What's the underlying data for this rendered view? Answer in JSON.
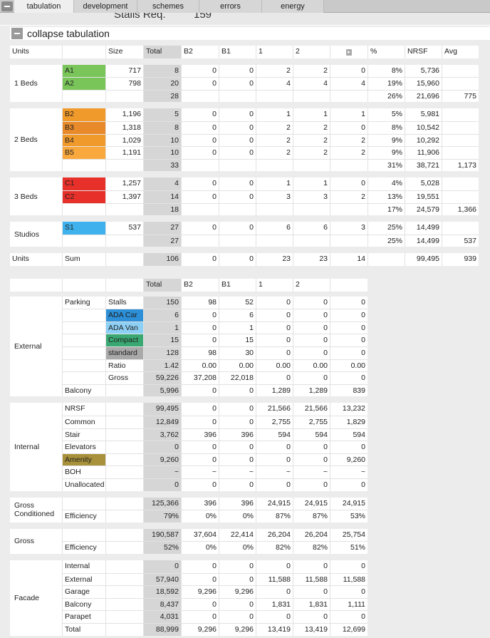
{
  "tabs": [
    "tabulation",
    "development",
    "schemes",
    "errors",
    "energy"
  ],
  "stalls_peek": {
    "label": "Stalls Req.",
    "value": "159"
  },
  "section_title": "collapse tabulation",
  "unit_header": [
    "Units",
    "",
    "Size",
    "Total",
    "B2",
    "B1",
    "1",
    "2",
    "",
    "%",
    "NRSF",
    "Avg"
  ],
  "unit_groups": [
    {
      "label": "1 Beds",
      "rows": [
        {
          "type": "A1",
          "color": "#7ac55a",
          "size": "717",
          "total": "8",
          "b2": "0",
          "b1": "0",
          "f1": "2",
          "f2": "2",
          "f3": "0",
          "pct": "8%",
          "nrsf": "5,736",
          "avg": ""
        },
        {
          "type": "A2",
          "color": "#7ac55a",
          "size": "798",
          "total": "20",
          "b2": "0",
          "b1": "0",
          "f1": "4",
          "f2": "4",
          "f3": "4",
          "pct": "19%",
          "nrsf": "15,960",
          "avg": ""
        },
        {
          "type": "",
          "color": "",
          "size": "",
          "total": "28",
          "b2": "",
          "b1": "",
          "f1": "",
          "f2": "",
          "f3": "",
          "pct": "26%",
          "nrsf": "21,696",
          "avg": "775"
        }
      ]
    },
    {
      "label": "2 Beds",
      "rows": [
        {
          "type": "B2",
          "color": "#f19a2c",
          "size": "1,196",
          "total": "5",
          "b2": "0",
          "b1": "0",
          "f1": "1",
          "f2": "1",
          "f3": "1",
          "pct": "5%",
          "nrsf": "5,981",
          "avg": ""
        },
        {
          "type": "B3",
          "color": "#e88a2a",
          "size": "1,318",
          "total": "8",
          "b2": "0",
          "b1": "0",
          "f1": "2",
          "f2": "2",
          "f3": "0",
          "pct": "8%",
          "nrsf": "10,542",
          "avg": ""
        },
        {
          "type": "B4",
          "color": "#f19a2c",
          "size": "1,029",
          "total": "10",
          "b2": "0",
          "b1": "0",
          "f1": "2",
          "f2": "2",
          "f3": "2",
          "pct": "9%",
          "nrsf": "10,292",
          "avg": ""
        },
        {
          "type": "B5",
          "color": "#f8a83c",
          "size": "1,191",
          "total": "10",
          "b2": "0",
          "b1": "0",
          "f1": "2",
          "f2": "2",
          "f3": "2",
          "pct": "9%",
          "nrsf": "11,906",
          "avg": ""
        },
        {
          "type": "",
          "color": "",
          "size": "",
          "total": "33",
          "b2": "",
          "b1": "",
          "f1": "",
          "f2": "",
          "f3": "",
          "pct": "31%",
          "nrsf": "38,721",
          "avg": "1,173"
        }
      ]
    },
    {
      "label": "3 Beds",
      "rows": [
        {
          "type": "C1",
          "color": "#e8302a",
          "size": "1,257",
          "total": "4",
          "b2": "0",
          "b1": "0",
          "f1": "1",
          "f2": "1",
          "f3": "0",
          "pct": "4%",
          "nrsf": "5,028",
          "avg": ""
        },
        {
          "type": "C2",
          "color": "#e8302a",
          "size": "1,397",
          "total": "14",
          "b2": "0",
          "b1": "0",
          "f1": "3",
          "f2": "3",
          "f3": "2",
          "pct": "13%",
          "nrsf": "19,551",
          "avg": ""
        },
        {
          "type": "",
          "color": "",
          "size": "",
          "total": "18",
          "b2": "",
          "b1": "",
          "f1": "",
          "f2": "",
          "f3": "",
          "pct": "17%",
          "nrsf": "24,579",
          "avg": "1,366"
        }
      ]
    },
    {
      "label": "Studios",
      "rows": [
        {
          "type": "S1",
          "color": "#3fb2ee",
          "size": "537",
          "total": "27",
          "b2": "0",
          "b1": "0",
          "f1": "6",
          "f2": "6",
          "f3": "3",
          "pct": "25%",
          "nrsf": "14,499",
          "avg": ""
        },
        {
          "type": "",
          "color": "",
          "size": "",
          "total": "27",
          "b2": "",
          "b1": "",
          "f1": "",
          "f2": "",
          "f3": "",
          "pct": "25%",
          "nrsf": "14,499",
          "avg": "537"
        }
      ]
    }
  ],
  "units_sum": {
    "label": "Units",
    "sub": "Sum",
    "total": "106",
    "b2": "0",
    "b1": "0",
    "f1": "23",
    "f2": "23",
    "f3": "14",
    "nrsf": "99,495",
    "avg": "939"
  },
  "area_header": [
    "",
    "",
    "",
    "Total",
    "B2",
    "B1",
    "1",
    "2",
    ""
  ],
  "area_groups": [
    {
      "label": "External",
      "rows": [
        {
          "cat": "Parking",
          "sub": "Stalls",
          "color": "",
          "vals": [
            "150",
            "98",
            "52",
            "0",
            "0",
            "0"
          ]
        },
        {
          "cat": "",
          "sub": "ADA Car",
          "color": "#2c8fd8",
          "vals": [
            "6",
            "0",
            "6",
            "0",
            "0",
            "0"
          ]
        },
        {
          "cat": "",
          "sub": "ADA Van",
          "color": "#8dd0f5",
          "vals": [
            "1",
            "0",
            "1",
            "0",
            "0",
            "0"
          ]
        },
        {
          "cat": "",
          "sub": "Compact",
          "color": "#3aa873",
          "vals": [
            "15",
            "0",
            "15",
            "0",
            "0",
            "0"
          ]
        },
        {
          "cat": "",
          "sub": "standard",
          "color": "#a9a9a9",
          "vals": [
            "128",
            "98",
            "30",
            "0",
            "0",
            "0"
          ]
        },
        {
          "cat": "",
          "sub": "Ratio",
          "color": "",
          "vals": [
            "1.42",
            "0.00",
            "0.00",
            "0.00",
            "0.00",
            "0.00"
          ]
        },
        {
          "cat": "",
          "sub": "Gross",
          "color": "",
          "vals": [
            "59,226",
            "37,208",
            "22,018",
            "0",
            "0",
            "0"
          ]
        },
        {
          "cat": "Balcony",
          "sub": "",
          "color": "",
          "vals": [
            "5,996",
            "0",
            "0",
            "1,289",
            "1,289",
            "839"
          ]
        }
      ]
    },
    {
      "label": "Internal",
      "rows": [
        {
          "cat": "NRSF",
          "sub": "",
          "color": "",
          "vals": [
            "99,495",
            "0",
            "0",
            "21,566",
            "21,566",
            "13,232"
          ]
        },
        {
          "cat": "Common",
          "sub": "",
          "color": "",
          "vals": [
            "12,849",
            "0",
            "0",
            "2,755",
            "2,755",
            "1,829"
          ]
        },
        {
          "cat": "Stair",
          "sub": "",
          "color": "",
          "vals": [
            "3,762",
            "396",
            "396",
            "594",
            "594",
            "594"
          ]
        },
        {
          "cat": "Elevators",
          "sub": "",
          "color": "",
          "vals": [
            "0",
            "0",
            "0",
            "0",
            "0",
            "0"
          ]
        },
        {
          "cat": "Amenity",
          "sub": "",
          "color": "#a8913a",
          "vals": [
            "9,260",
            "0",
            "0",
            "0",
            "0",
            "9,260"
          ]
        },
        {
          "cat": "BOH",
          "sub": "",
          "color": "",
          "vals": [
            "~",
            "~",
            "~",
            "~",
            "~",
            "~"
          ]
        },
        {
          "cat": "Unallocated",
          "sub": "",
          "color": "",
          "vals": [
            "0",
            "0",
            "0",
            "0",
            "0",
            "0"
          ]
        }
      ]
    },
    {
      "label": "Gross Conditioned",
      "rows": [
        {
          "cat": "",
          "sub": "",
          "color": "",
          "vals": [
            "125,366",
            "396",
            "396",
            "24,915",
            "24,915",
            "24,915"
          ]
        },
        {
          "cat": "Efficiency",
          "sub": "",
          "color": "",
          "vals": [
            "79%",
            "0%",
            "0%",
            "87%",
            "87%",
            "53%"
          ]
        }
      ]
    },
    {
      "label": "Gross",
      "rows": [
        {
          "cat": "",
          "sub": "",
          "color": "",
          "vals": [
            "190,587",
            "37,604",
            "22,414",
            "26,204",
            "26,204",
            "25,754"
          ]
        },
        {
          "cat": "Efficiency",
          "sub": "",
          "color": "",
          "vals": [
            "52%",
            "0%",
            "0%",
            "82%",
            "82%",
            "51%"
          ]
        }
      ]
    },
    {
      "label": "Facade",
      "rows": [
        {
          "cat": "Internal",
          "sub": "",
          "color": "",
          "vals": [
            "0",
            "0",
            "0",
            "0",
            "0",
            "0"
          ]
        },
        {
          "cat": "External",
          "sub": "",
          "color": "",
          "vals": [
            "57,940",
            "0",
            "0",
            "11,588",
            "11,588",
            "11,588"
          ]
        },
        {
          "cat": "Garage",
          "sub": "",
          "color": "",
          "vals": [
            "18,592",
            "9,296",
            "9,296",
            "0",
            "0",
            "0"
          ]
        },
        {
          "cat": "Balcony",
          "sub": "",
          "color": "",
          "vals": [
            "8,437",
            "0",
            "0",
            "1,831",
            "1,831",
            "1,111"
          ]
        },
        {
          "cat": "Parapet",
          "sub": "",
          "color": "",
          "vals": [
            "4,031",
            "0",
            "0",
            "0",
            "0",
            "0"
          ]
        },
        {
          "cat": "Total",
          "sub": "",
          "color": "",
          "vals": [
            "88,999",
            "9,296",
            "9,296",
            "13,419",
            "13,419",
            "12,699"
          ]
        }
      ]
    }
  ]
}
